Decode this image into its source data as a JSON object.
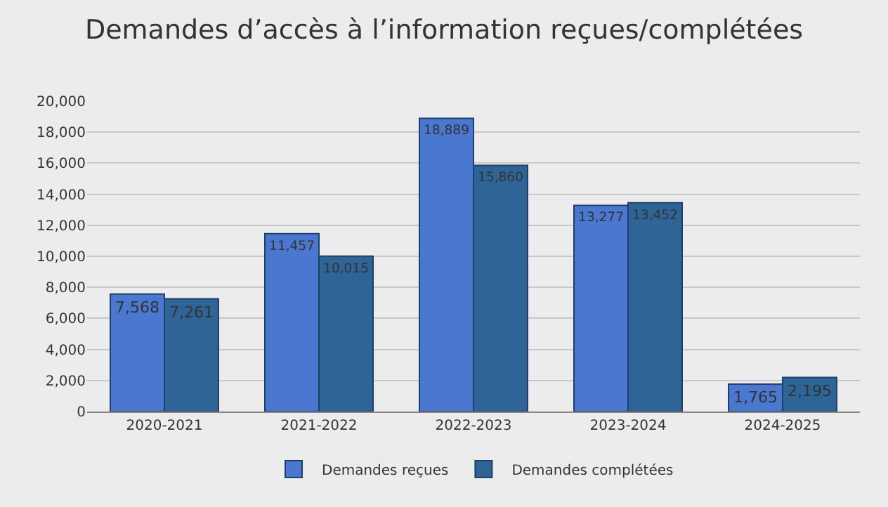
{
  "chart_data": {
    "type": "bar",
    "title": "Demandes d’accès à l’information reçues/complétées",
    "categories": [
      "2020-2021",
      "2021-2022",
      "2022-2023",
      "2023-2024",
      "2024-2025"
    ],
    "series": [
      {
        "name": "Demandes reçues",
        "color": "#4a78d0",
        "values": [
          7568,
          11457,
          18889,
          13277,
          1765
        ],
        "value_labels": [
          "7,568",
          "11,457",
          "18,889",
          "13,277",
          "1,765"
        ]
      },
      {
        "name": "Demandes complétées",
        "color": "#2f6496",
        "values": [
          7261,
          10015,
          15860,
          13452,
          2195
        ],
        "value_labels": [
          "7,261",
          "10,015",
          "15,860",
          "13,452",
          "2,195"
        ]
      }
    ],
    "ylim": [
      0,
      20000
    ],
    "yticks": [
      0,
      {
        "value": 2000,
        "label": "2,000"
      },
      {
        "value": 4000,
        "label": "4,000"
      },
      {
        "value": 6000,
        "label": "6,000"
      },
      {
        "value": 8000,
        "label": "8,000"
      },
      {
        "value": 10000,
        "label": "10,000"
      },
      {
        "value": 12000,
        "label": "12,000"
      },
      {
        "value": 14000,
        "label": "14,000"
      },
      {
        "value": 16000,
        "label": "16,000"
      },
      {
        "value": 18000,
        "label": "18,000"
      },
      {
        "value": 20000,
        "label": "20,000"
      }
    ],
    "grid": "y",
    "legend": "bottom"
  }
}
